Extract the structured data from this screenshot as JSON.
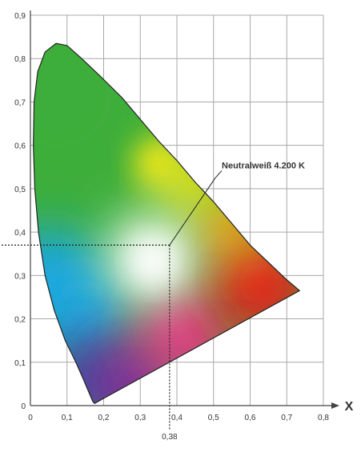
{
  "chart_data": {
    "type": "scatter",
    "title": "",
    "xlabel": "X",
    "ylabel": "",
    "xlim": [
      0,
      0.8
    ],
    "ylim": [
      0,
      0.9
    ],
    "grid": true,
    "x_ticks": [
      "0",
      "0,1",
      "0,2",
      "0,3",
      "0,4",
      "0,5",
      "0,6",
      "0,7",
      "0,8"
    ],
    "y_ticks": [
      "0",
      "0,1",
      "0,2",
      "0,3",
      "0,4",
      "0,5",
      "0,6",
      "0,7",
      "0,8",
      "0,9"
    ],
    "x_tick_values": [
      0,
      0.1,
      0.2,
      0.3,
      0.4,
      0.5,
      0.6,
      0.7,
      0.8
    ],
    "y_tick_values": [
      0,
      0.1,
      0.2,
      0.3,
      0.4,
      0.5,
      0.6,
      0.7,
      0.8,
      0.9
    ],
    "spectral_locus": {
      "x": [
        0.175,
        0.17,
        0.16,
        0.145,
        0.124,
        0.095,
        0.065,
        0.04,
        0.022,
        0.012,
        0.008,
        0.01,
        0.02,
        0.04,
        0.07,
        0.1,
        0.14,
        0.19,
        0.25,
        0.3,
        0.35,
        0.4,
        0.45,
        0.5,
        0.55,
        0.6,
        0.65,
        0.7,
        0.735
      ],
      "y": [
        0.005,
        0.01,
        0.03,
        0.06,
        0.1,
        0.15,
        0.22,
        0.3,
        0.4,
        0.5,
        0.6,
        0.7,
        0.77,
        0.815,
        0.835,
        0.83,
        0.8,
        0.76,
        0.71,
        0.66,
        0.61,
        0.565,
        0.515,
        0.47,
        0.42,
        0.37,
        0.33,
        0.29,
        0.265
      ]
    },
    "purple_line": {
      "x": [
        0.735,
        0.175
      ],
      "y": [
        0.265,
        0.005
      ]
    },
    "annotation": {
      "label": "Neutralweiß 4.200 K",
      "point": {
        "x": 0.38,
        "y": 0.37
      },
      "x_value_label": "0,38",
      "leader_end": {
        "x": 0.505,
        "y": 0.525
      }
    }
  },
  "colors": {
    "grid": "#a8a8a8",
    "axis": "#444444",
    "locus_outline": "#222222",
    "marker_line": "#222222",
    "green": "#3eae3a",
    "cyan": "#1ca7e0",
    "blue": "#3a4aaa",
    "purple": "#7a2f9a",
    "red": "#e3201f",
    "magenta": "#e23d84",
    "orange": "#f7a11c",
    "yellow": "#eee81e",
    "white": "#ffffff"
  }
}
